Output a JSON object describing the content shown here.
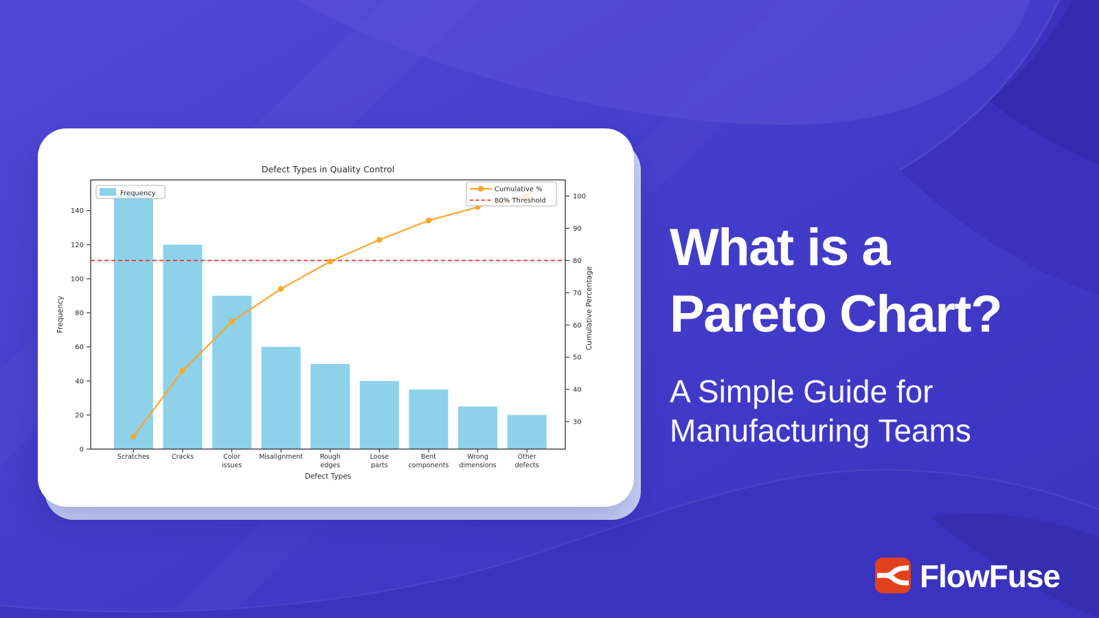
{
  "hero": {
    "title_line1": "What is a",
    "title_line2": "Pareto Chart?",
    "subtitle_line1": "A Simple Guide for",
    "subtitle_line2": "Manufacturing Teams"
  },
  "brand": {
    "name": "FlowFuse",
    "icon_color": "#e2411e"
  },
  "colors": {
    "background_gradient": [
      "#5049d7",
      "#443dcb",
      "#3a33c0"
    ],
    "wave_light": "#5a52da",
    "wave_dark": "#3932bb",
    "wave_darker": "#312aab",
    "wave_ridge_highlight": "#7a72e8",
    "card": "#ffffff",
    "card_back_layer": "#cbd6f9",
    "bar": "#8dd1ea",
    "line": "#fca62a",
    "threshold": "#ed2d24",
    "axis": "#3c3c3c",
    "chart_text": "#2b2b2b",
    "legend_border": "#b5b5b5"
  },
  "chart_data": {
    "type": "pareto (bar + line combo)",
    "title": "Defect Types in Quality Control",
    "categories": [
      "Scratches",
      "Cracks",
      "Color\nissues",
      "Misalignment",
      "Rough\nedges",
      "Loose\nparts",
      "Bent\ncomponents",
      "Wrong\ndimensions",
      "Other\ndefects"
    ],
    "bar_series": {
      "name": "Frequency",
      "values": [
        150,
        120,
        90,
        60,
        50,
        40,
        35,
        25,
        20
      ]
    },
    "line_series": {
      "name": "Cumulative %",
      "values": [
        25.4,
        45.8,
        61.0,
        71.2,
        79.7,
        86.4,
        92.4,
        96.6,
        100.0
      ]
    },
    "threshold_line": {
      "name": "80% Threshold",
      "value": 80
    },
    "xlabel": "Defect Types",
    "ylabel_left": "Frequency",
    "ylabel_right": "Cumulative Percentage",
    "yticks_left": [
      0,
      20,
      40,
      60,
      80,
      100,
      120,
      140
    ],
    "yticks_right": [
      30,
      40,
      50,
      60,
      70,
      80,
      90,
      100
    ],
    "ylim_left": [
      0,
      158
    ],
    "ylim_right": [
      21.5,
      105
    ],
    "legend_top_left": [
      "Frequency"
    ],
    "legend_top_right": [
      "Cumulative %",
      "80% Threshold"
    ],
    "grid": false
  }
}
